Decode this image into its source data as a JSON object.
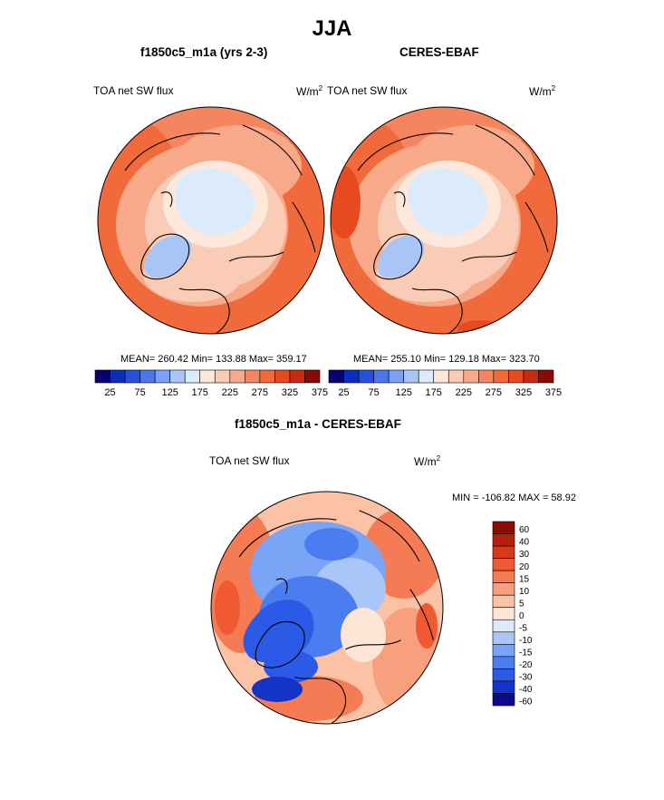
{
  "figure": {
    "title": "JJA",
    "panels": [
      {
        "title": "f1850c5_m1a (yrs 2-3)",
        "variable": "TOA net SW flux",
        "units_base": "W/m",
        "units_exp": "2",
        "stats": "MEAN= 260.42  Min= 133.88  Max= 359.17"
      },
      {
        "title": "CERES-EBAF",
        "variable": "TOA net SW flux",
        "units_base": "W/m",
        "units_exp": "2",
        "stats": "MEAN= 255.10  Min= 129.18  Max= 323.70"
      },
      {
        "title": "f1850c5_m1a - CERES-EBAF",
        "variable": "TOA net SW flux",
        "units_base": "W/m",
        "units_exp": "2",
        "stats": "MIN = -106.82 MAX =  58.92"
      }
    ]
  },
  "colors": {
    "abs": [
      "#08006e",
      "#0a2fbf",
      "#2450e0",
      "#4a78ec",
      "#7ba0f4",
      "#a9c5f7",
      "#dcebfb",
      "#fde8db",
      "#fbccb5",
      "#f8a98a",
      "#f5855f",
      "#f06a3c",
      "#e84a20",
      "#c72a10",
      "#8a0a04"
    ],
    "diff": [
      "#0a0a8a",
      "#1433c8",
      "#2a5ae6",
      "#4a7ef0",
      "#7aa4f5",
      "#a8c6f8",
      "#dcebfb",
      "#fde6d6",
      "#fbc2a6",
      "#f8a07e",
      "#f47b54",
      "#ef5a32",
      "#d8391a",
      "#b81e0c",
      "#8c0c04"
    ]
  },
  "chart_data": [
    {
      "type": "heatmap",
      "title": "f1850c5_m1a (yrs 2-3)",
      "subtitle": "TOA net SW flux",
      "colorbar_ticks": [
        "25",
        "75",
        "125",
        "175",
        "225",
        "275",
        "325",
        "375"
      ],
      "mean": 260.42,
      "min": 133.88,
      "max": 359.17
    },
    {
      "type": "heatmap",
      "title": "CERES-EBAF",
      "subtitle": "TOA net SW flux",
      "colorbar_ticks": [
        "25",
        "75",
        "125",
        "175",
        "225",
        "275",
        "325",
        "375"
      ],
      "mean": 255.1,
      "min": 129.18,
      "max": 323.7
    },
    {
      "type": "heatmap",
      "title": "f1850c5_m1a - CERES-EBAF",
      "subtitle": "TOA net SW flux",
      "colorbar_ticks": [
        "60",
        "40",
        "30",
        "20",
        "15",
        "10",
        "5",
        "0",
        "-5",
        "-10",
        "-15",
        "-20",
        "-30",
        "-40",
        "-60"
      ],
      "min": -106.82,
      "max": 58.92
    }
  ]
}
